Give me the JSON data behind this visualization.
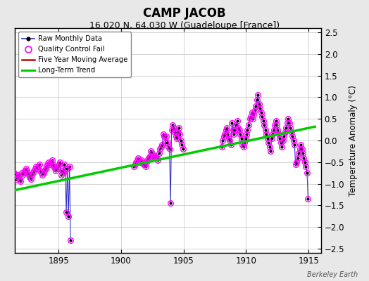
{
  "title": "CAMP JACOB",
  "subtitle": "16.020 N, 64.030 W (Guadeloupe [France])",
  "ylabel": "Temperature Anomaly (°C)",
  "credit": "Berkeley Earth",
  "xlim": [
    1891.5,
    1916.0
  ],
  "ylim": [
    -2.6,
    2.6
  ],
  "yticks": [
    -2.5,
    -2.0,
    -1.5,
    -1.0,
    -0.5,
    0.0,
    0.5,
    1.0,
    1.5,
    2.0,
    2.5
  ],
  "xticks": [
    1895,
    1900,
    1905,
    1910,
    1915
  ],
  "bg_color": "#e8e8e8",
  "plot_bg_color": "#ffffff",
  "raw_color": "#3333cc",
  "qc_color": "#ff00ff",
  "mavg_color": "#cc0000",
  "trend_color": "#00cc00",
  "trend_x": [
    1891.5,
    1915.5
  ],
  "trend_y": [
    -1.15,
    0.32
  ],
  "grid_color": "#cccccc",
  "title_fontsize": 12,
  "subtitle_fontsize": 9,
  "segments": [
    {
      "x": [
        1891.04,
        1891.12,
        1891.21,
        1891.29,
        1891.38,
        1891.46,
        1891.54,
        1891.62,
        1891.71,
        1891.79,
        1891.88,
        1891.96,
        1892.04,
        1892.12,
        1892.21,
        1892.29,
        1892.38,
        1892.46,
        1892.54,
        1892.62,
        1892.71,
        1892.79,
        1892.88,
        1892.96,
        1893.04,
        1893.12,
        1893.21,
        1893.29,
        1893.38,
        1893.46,
        1893.54,
        1893.62,
        1893.71,
        1893.79,
        1893.88,
        1893.96,
        1894.04,
        1894.12,
        1894.21,
        1894.29,
        1894.38,
        1894.46,
        1894.54,
        1894.62,
        1894.71,
        1894.79,
        1894.88,
        1894.96,
        1895.04,
        1895.12,
        1895.21,
        1895.29,
        1895.38,
        1895.46,
        1895.54,
        1895.62,
        1895.71,
        1895.79,
        1895.88,
        1895.96
      ],
      "y": [
        -0.85,
        -0.75,
        -0.8,
        -0.85,
        -0.8,
        -0.75,
        -0.8,
        -0.9,
        -0.85,
        -0.8,
        -0.9,
        -0.95,
        -0.75,
        -0.8,
        -0.75,
        -0.7,
        -0.65,
        -0.7,
        -0.75,
        -0.8,
        -0.85,
        -0.9,
        -0.8,
        -0.75,
        -0.7,
        -0.65,
        -0.6,
        -0.65,
        -0.6,
        -0.55,
        -0.7,
        -0.75,
        -0.8,
        -0.75,
        -0.7,
        -0.65,
        -0.6,
        -0.55,
        -0.5,
        -0.55,
        -0.5,
        -0.45,
        -0.55,
        -0.6,
        -0.65,
        -0.7,
        -0.65,
        -0.6,
        -0.55,
        -0.5,
        -0.8,
        -0.7,
        -0.75,
        -0.55,
        -0.65,
        -1.65,
        -0.65,
        -1.75,
        -0.6,
        -2.3
      ]
    },
    {
      "x": [
        1901.04,
        1901.12,
        1901.21,
        1901.29,
        1901.38,
        1901.46,
        1901.54,
        1901.62,
        1901.71,
        1901.79,
        1901.88,
        1901.96,
        1902.04,
        1902.12,
        1902.21,
        1902.29,
        1902.38,
        1902.46,
        1902.54,
        1902.62,
        1902.71,
        1902.79,
        1902.88,
        1902.96,
        1903.04,
        1903.12,
        1903.21,
        1903.29,
        1903.38,
        1903.46,
        1903.54,
        1903.62,
        1903.71,
        1903.79,
        1903.88,
        1903.96,
        1904.04,
        1904.12,
        1904.21,
        1904.29,
        1904.38,
        1904.46,
        1904.54,
        1904.62,
        1904.71,
        1904.79,
        1904.88,
        1904.96
      ],
      "y": [
        -0.6,
        -0.55,
        -0.5,
        -0.45,
        -0.4,
        -0.45,
        -0.5,
        -0.45,
        -0.5,
        -0.55,
        -0.55,
        -0.6,
        -0.5,
        -0.45,
        -0.4,
        -0.35,
        -0.25,
        -0.3,
        -0.4,
        -0.35,
        -0.35,
        -0.4,
        -0.4,
        -0.45,
        -0.3,
        -0.2,
        -0.15,
        -0.1,
        0.15,
        0.1,
        -0.05,
        0.1,
        -0.05,
        -0.15,
        -0.2,
        -1.45,
        0.25,
        0.35,
        0.3,
        0.2,
        0.1,
        0.05,
        0.2,
        0.3,
        0.15,
        0.0,
        -0.1,
        -0.2
      ]
    },
    {
      "x": [
        1908.04,
        1908.12,
        1908.21,
        1908.29,
        1908.38,
        1908.46,
        1908.54,
        1908.62,
        1908.71,
        1908.79,
        1908.88,
        1908.96,
        1909.04,
        1909.12,
        1909.21,
        1909.29,
        1909.38,
        1909.46,
        1909.54,
        1909.62,
        1909.71,
        1909.79,
        1909.88,
        1909.96,
        1910.04,
        1910.12,
        1910.21,
        1910.29,
        1910.38,
        1910.46,
        1910.54,
        1910.62,
        1910.71,
        1910.79,
        1910.88,
        1910.96,
        1911.04,
        1911.12,
        1911.21,
        1911.29,
        1911.38,
        1911.46,
        1911.54,
        1911.62,
        1911.71,
        1911.79,
        1911.88,
        1911.96,
        1912.04,
        1912.12,
        1912.21,
        1912.29,
        1912.38,
        1912.46,
        1912.54,
        1912.62,
        1912.71,
        1912.79,
        1912.88,
        1912.96,
        1913.04,
        1913.12,
        1913.21,
        1913.29,
        1913.38,
        1913.46,
        1913.54,
        1913.62,
        1913.71,
        1913.79,
        1913.88,
        1913.96,
        1914.04,
        1914.12,
        1914.21,
        1914.29,
        1914.38,
        1914.46,
        1914.54,
        1914.62,
        1914.71,
        1914.79,
        1914.88,
        1914.96
      ],
      "y": [
        -0.15,
        0.0,
        0.1,
        0.15,
        0.25,
        0.3,
        0.15,
        0.05,
        0.0,
        -0.1,
        0.4,
        0.25,
        0.15,
        0.25,
        0.35,
        0.45,
        0.3,
        0.25,
        0.15,
        0.05,
        -0.1,
        -0.15,
        -0.05,
        0.05,
        0.15,
        0.25,
        0.35,
        0.5,
        0.55,
        0.65,
        0.5,
        0.6,
        0.7,
        0.8,
        0.95,
        1.05,
        0.85,
        0.75,
        0.65,
        0.55,
        0.45,
        0.35,
        0.25,
        0.15,
        0.05,
        -0.05,
        -0.15,
        -0.25,
        0.05,
        0.15,
        0.25,
        0.35,
        0.45,
        0.35,
        0.25,
        0.15,
        0.05,
        -0.05,
        -0.15,
        0.0,
        0.1,
        0.2,
        0.3,
        0.4,
        0.5,
        0.4,
        0.3,
        0.2,
        0.1,
        0.0,
        -0.1,
        -0.55,
        -0.5,
        -0.4,
        -0.3,
        -0.2,
        -0.1,
        -0.2,
        -0.3,
        -0.4,
        -0.5,
        -0.6,
        -0.75,
        -1.35
      ]
    }
  ]
}
